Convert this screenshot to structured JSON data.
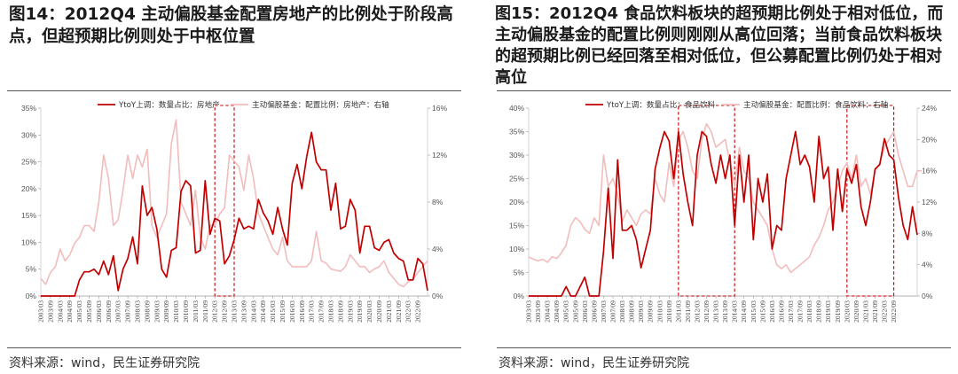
{
  "panels": [
    {
      "title": "图14：2012Q4 主动偏股基金配置房地产的比例处于阶段高点，但超预期比例则处于中枢位置",
      "source": "资料来源：wind，民生证券研究院",
      "chart_data": {
        "type": "line",
        "x_ticks": [
          "2003/03",
          "2003/09",
          "2004/03",
          "2004/09",
          "2005/03",
          "2005/09",
          "2006/03",
          "2006/09",
          "2007/03",
          "2007/09",
          "2008/03",
          "2008/09",
          "2009/03",
          "2009/09",
          "2010/03",
          "2010/09",
          "2011/03",
          "2011/09",
          "2012/03",
          "2012/09",
          "2013/03",
          "2013/09",
          "2014/03",
          "2014/09",
          "2015/03",
          "2015/09",
          "2016/03",
          "2016/09",
          "2017/03",
          "2017/09",
          "2018/03",
          "2018/09",
          "2019/03",
          "2019/09",
          "2020/03",
          "2020/09",
          "2021/03",
          "2021/09",
          "2022/03",
          "2022/09"
        ],
        "left_axis": {
          "min": 0,
          "max": 35,
          "ticks": [
            "0%",
            "5%",
            "10%",
            "15%",
            "20%",
            "25%",
            "30%",
            "35%"
          ]
        },
        "right_axis": {
          "min": 0,
          "max": 16,
          "ticks": [
            "0%",
            "4%",
            "8%",
            "12%",
            "16%"
          ]
        },
        "series": [
          {
            "name": "YtoY上调：数量占比：房地产",
            "color": "#c00000",
            "axis": "left",
            "values": [
              0,
              0,
              0,
              0,
              0,
              0,
              0,
              0,
              3,
              4.5,
              4.5,
              5,
              4,
              6.5,
              4,
              7.5,
              1,
              5,
              7,
              11,
              6,
              20.5,
              15,
              16.5,
              12.5,
              5,
              3.5,
              8.5,
              9,
              19.5,
              21.5,
              20.5,
              8,
              8.5,
              21.5,
              11.5,
              14.5,
              14,
              6,
              7.5,
              10.5,
              14.5,
              12.5,
              13,
              12.5,
              18,
              15.5,
              14,
              11.5,
              16.5,
              12.5,
              9.5,
              21,
              24.5,
              20,
              26,
              30.5,
              25,
              23.5,
              23.5,
              16,
              21,
              12.5,
              13,
              18,
              16,
              8,
              13,
              13,
              9,
              8.5,
              10,
              10.5,
              8,
              7,
              6.5,
              3,
              3,
              7,
              6,
              1
            ]
          },
          {
            "name": "主动偏股基金：配置比例：房地产：右轴",
            "color": "#f2bcbc",
            "axis": "right",
            "values": [
              1.5,
              1,
              2,
              2.5,
              4,
              3,
              3.5,
              4.5,
              5,
              6,
              6,
              5.5,
              8,
              12,
              10,
              6,
              6.5,
              9,
              12,
              10,
              12,
              11,
              12.5,
              6,
              5,
              6,
              7,
              13,
              15,
              8,
              7,
              6,
              9,
              5,
              4,
              6,
              6,
              7,
              7.5,
              12,
              11.5,
              11,
              9,
              12,
              10,
              7,
              6,
              5,
              4,
              3.5,
              5,
              3,
              2.5,
              2.5,
              2.5,
              2.5,
              3,
              5.5,
              3,
              2.8,
              2.3,
              2.2,
              2.1,
              2.5,
              3.5,
              3,
              2.5,
              2.5,
              2,
              2.3,
              2.5,
              3,
              2,
              1.5,
              1,
              0.8,
              1.2,
              1.4,
              2,
              2.5,
              3
            ]
          }
        ],
        "highlight": {
          "label_from": "2012/03",
          "label_to": "2013/03"
        }
      }
    },
    {
      "title": "图15：2012Q4 食品饮料板块的超预期比例处于相对低位，而主动偏股基金的配置比例则刚刚从高位回落；当前食品饮料板块的超预期比例已经回落至相对低位，但公募配置比例仍处于相对高位",
      "source": "资料来源：wind，民生证券研究院",
      "chart_data": {
        "type": "line",
        "x_ticks": [
          "2003/03",
          "2003/09",
          "2004/03",
          "2004/09",
          "2005/03",
          "2005/09",
          "2006/03",
          "2006/09",
          "2007/03",
          "2007/09",
          "2008/03",
          "2008/09",
          "2009/03",
          "2009/09",
          "2010/03",
          "2010/09",
          "2011/03",
          "2011/09",
          "2012/03",
          "2012/09",
          "2013/03",
          "2013/09",
          "2014/03",
          "2014/09",
          "2015/03",
          "2015/09",
          "2016/03",
          "2016/09",
          "2017/03",
          "2017/09",
          "2018/03",
          "2018/09",
          "2019/03",
          "2019/09",
          "2020/03",
          "2020/09",
          "2021/03",
          "2021/09",
          "2022/03",
          "2022/09"
        ],
        "left_axis": {
          "min": 0,
          "max": 40,
          "ticks": [
            "0%",
            "5%",
            "10%",
            "15%",
            "20%",
            "25%",
            "30%",
            "35%",
            "40%"
          ]
        },
        "right_axis": {
          "min": 0,
          "max": 24,
          "ticks": [
            "0%",
            "4%",
            "8%",
            "12%",
            "16%",
            "20%",
            "24%"
          ]
        },
        "series": [
          {
            "name": "YtoY上调：数量占比：食品饮料",
            "color": "#c00000",
            "axis": "left",
            "values": [
              0,
              0,
              0,
              0,
              0,
              0,
              0,
              0,
              2,
              0,
              0,
              2,
              4,
              0,
              0,
              0,
              9.5,
              23,
              8,
              29,
              14,
              14,
              15,
              12,
              6,
              10,
              14,
              27,
              31.5,
              35,
              33,
              25,
              35,
              26,
              20,
              15,
              30,
              35,
              34,
              28,
              24,
              30,
              25,
              30,
              15,
              30,
              20,
              30,
              12,
              25,
              20,
              26,
              10,
              15,
              14,
              25,
              30,
              35,
              28,
              30,
              27.5,
              20,
              34,
              25,
              27.5,
              14,
              27,
              18,
              27,
              24,
              28,
              19,
              15,
              20,
              27,
              28,
              33.5,
              30,
              29,
              21,
              15,
              12,
              19,
              13
            ]
          },
          {
            "name": "主动偏股基金：配置比例：食品饮料：右轴",
            "color": "#f2bcbc",
            "axis": "right",
            "values": [
              5,
              4.7,
              4.5,
              4.7,
              4.3,
              5,
              4.8,
              5.5,
              6.5,
              9,
              10,
              9.5,
              8.5,
              8,
              10,
              9,
              18,
              14,
              15,
              13,
              9.5,
              11,
              10,
              9,
              10.5,
              11,
              10.5,
              15,
              13,
              12,
              17,
              14,
              20,
              21,
              19,
              16,
              15,
              20,
              22,
              21,
              19,
              19.5,
              20,
              17,
              14,
              19,
              16,
              15,
              12,
              11,
              10,
              9,
              6,
              4,
              3.5,
              4,
              3,
              3.5,
              4,
              4.5,
              5,
              6.5,
              7.5,
              9,
              11,
              12,
              14,
              16,
              17,
              15,
              18,
              14,
              15,
              13,
              16,
              17,
              19,
              20,
              21,
              18,
              16,
              14,
              14,
              16,
              16
            ]
          }
        ],
        "highlights": [
          {
            "label_from": "2011/03",
            "label_to": "2014/03"
          },
          {
            "label_from": "2020/03",
            "label_to": "2022/09"
          }
        ]
      }
    }
  ]
}
